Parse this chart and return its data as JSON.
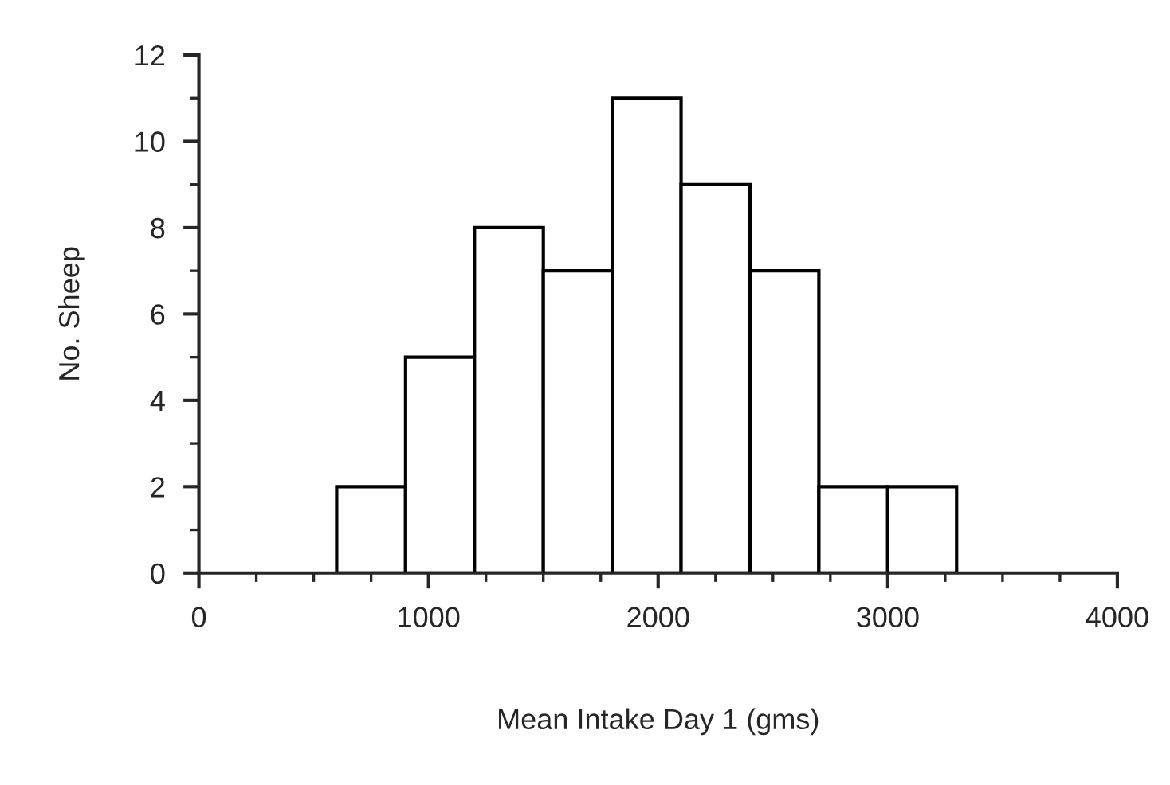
{
  "chart_data": {
    "type": "histogram",
    "xlabel": "Mean Intake Day 1 (gms)",
    "ylabel": "No. Sheep",
    "bins": [
      600,
      900,
      1200,
      1500,
      1800,
      2100,
      2400,
      2700,
      3000,
      3300
    ],
    "values": [
      2,
      5,
      8,
      7,
      11,
      9,
      7,
      2,
      2
    ],
    "color": "#ffffff",
    "xlim": [
      0,
      4000
    ],
    "xticks": [
      0,
      {
        "value": 250,
        "label": null
      },
      {
        "value": 500,
        "label": null
      },
      {
        "value": 750,
        "label": null
      },
      1000,
      {
        "value": 1250,
        "label": null
      },
      {
        "value": 1500,
        "label": null
      },
      {
        "value": 1750,
        "label": null
      },
      2000,
      {
        "value": 2250,
        "label": null
      },
      {
        "value": 2500,
        "label": null
      },
      {
        "value": 2750,
        "label": null
      },
      3000,
      {
        "value": 3250,
        "label": null
      },
      {
        "value": 3500,
        "label": null
      },
      {
        "value": 3750,
        "label": null
      },
      4000
    ],
    "ylim": [
      0,
      12
    ],
    "yticks": [
      0,
      {
        "value": 1,
        "label": null
      },
      2,
      {
        "value": 3,
        "label": null
      },
      4,
      {
        "value": 5,
        "label": null
      },
      6,
      {
        "value": 7,
        "label": null
      },
      8,
      {
        "value": 9,
        "label": null
      },
      10,
      {
        "value": 11,
        "label": null
      },
      12
    ],
    "grid": false
  }
}
